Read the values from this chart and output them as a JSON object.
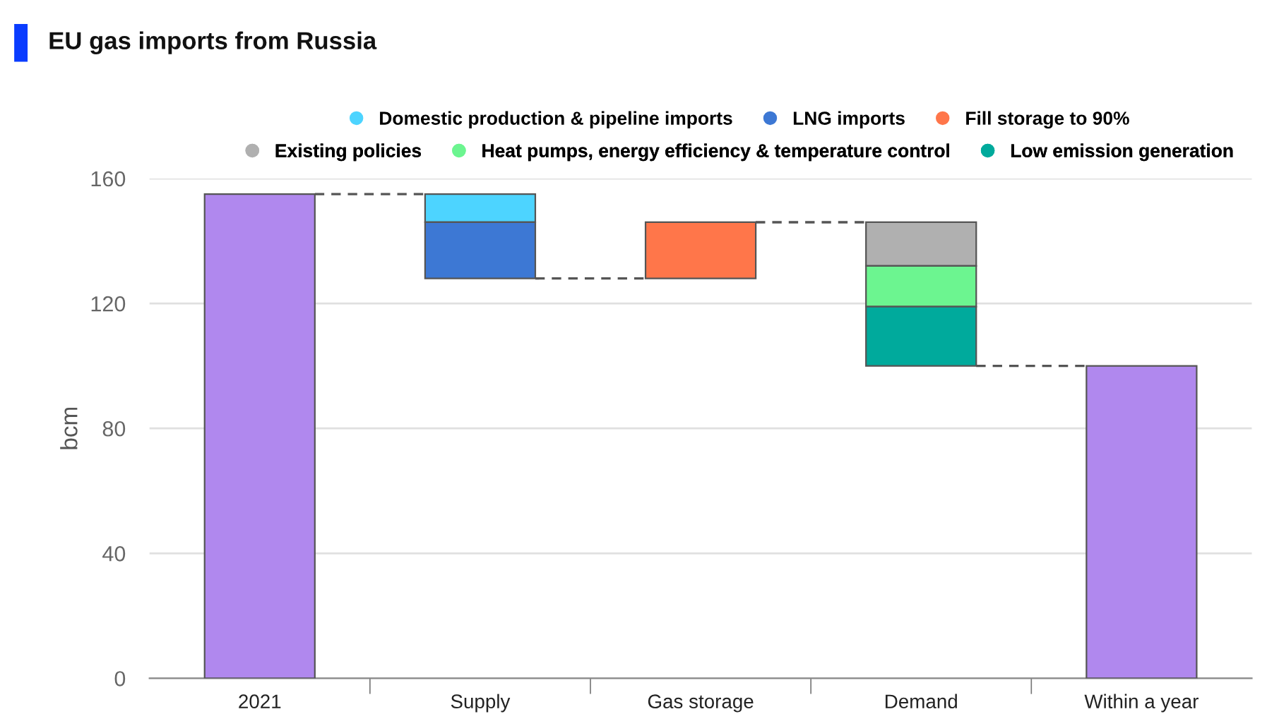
{
  "chart_data": {
    "type": "bar",
    "title": "EU gas imports from Russia",
    "ylabel": "bcm",
    "categories": [
      "2021",
      "Supply",
      "Gas storage",
      "Demand",
      "Within a year"
    ],
    "series": [
      {
        "color": "#b088ee",
        "values": [
          155,
          null,
          null,
          null,
          100
        ],
        "base": [
          0,
          null,
          null,
          null,
          0
        ]
      },
      {
        "name": "Domestic production & pipeline imports",
        "color": "#4dd4ff",
        "values": [
          null,
          9,
          null,
          null,
          null
        ],
        "base": [
          null,
          146,
          null,
          null,
          null
        ]
      },
      {
        "name": "LNG imports",
        "color": "#3d78d4",
        "values": [
          null,
          18,
          null,
          null,
          null
        ],
        "base": [
          null,
          128,
          null,
          null,
          null
        ]
      },
      {
        "name": "Fill storage to 90%",
        "color": "#ff764a",
        "values": [
          null,
          null,
          18,
          null,
          null
        ],
        "base": [
          null,
          null,
          128,
          null,
          null
        ]
      },
      {
        "name": "Existing policies",
        "color": "#b0b0b0",
        "values": [
          null,
          null,
          null,
          14,
          null
        ],
        "base": [
          null,
          null,
          null,
          132,
          null
        ]
      },
      {
        "name": "Heat pumps, energy efficiency & temperature control",
        "color": "#6cf590",
        "values": [
          null,
          null,
          null,
          13,
          null
        ],
        "base": [
          null,
          null,
          null,
          119,
          null
        ]
      },
      {
        "name": "Low emission generation",
        "color": "#00aa9c",
        "values": [
          null,
          null,
          null,
          19,
          null
        ],
        "base": [
          null,
          null,
          null,
          100,
          null
        ]
      }
    ],
    "ylim": [
      0,
      160
    ],
    "yticks": [
      0,
      40,
      80,
      120,
      160
    ],
    "grid": "y",
    "legend": "top"
  }
}
